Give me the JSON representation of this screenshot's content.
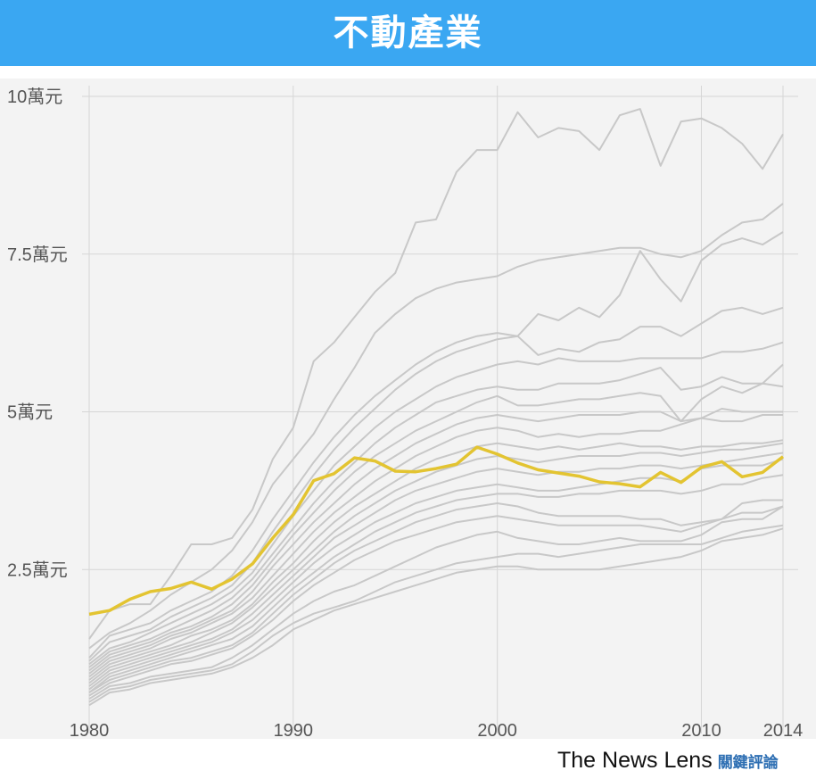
{
  "header": {
    "title": "不動產業"
  },
  "footer": {
    "brand_en": "The News Lens",
    "brand_zh": "關鍵評論"
  },
  "colors": {
    "banner": "#3aa7f2",
    "highlight": "#e3c431",
    "others": "#c8c8c8",
    "plot_bg": "#f3f3f3",
    "grid": "#d6d6d6"
  },
  "chart_data": {
    "type": "line",
    "title": "不動產業",
    "xlabel": "",
    "ylabel": "",
    "xlim": [
      1980,
      2014
    ],
    "ylim": [
      0,
      100000
    ],
    "grid": true,
    "x_ticks": [
      {
        "value": 1980,
        "label": "1980"
      },
      {
        "value": 1990,
        "label": "1990"
      },
      {
        "value": 2000,
        "label": "2000"
      },
      {
        "value": 2010,
        "label": "2010"
      },
      {
        "value": 2014,
        "label": "2014"
      }
    ],
    "y_ticks": [
      {
        "value": 25000,
        "label": "2.5萬元"
      },
      {
        "value": 50000,
        "label": "5萬元"
      },
      {
        "value": 75000,
        "label": "7.5萬元"
      },
      {
        "value": 100000,
        "label": "10萬元"
      }
    ],
    "x": [
      1980,
      1981,
      1982,
      1983,
      1984,
      1985,
      1986,
      1987,
      1988,
      1989,
      1990,
      1991,
      1992,
      1993,
      1994,
      1995,
      1996,
      1997,
      1998,
      1999,
      2000,
      2001,
      2002,
      2003,
      2004,
      2005,
      2006,
      2007,
      2008,
      2009,
      2010,
      2011,
      2012,
      2013,
      2014
    ],
    "highlight": {
      "values": [
        17900,
        18500,
        20300,
        21500,
        22000,
        23000,
        21900,
        23500,
        25900,
        30000,
        33700,
        39100,
        40200,
        42700,
        42200,
        40600,
        40500,
        41000,
        41700,
        44400,
        43300,
        41900,
        40800,
        40300,
        39800,
        38900,
        38600,
        38100,
        40400,
        38800,
        41200,
        42100,
        39700,
        40400,
        42900
      ]
    },
    "series": [
      {
        "values": [
          14000,
          18500,
          19500,
          19500,
          24000,
          29000,
          29000,
          30000,
          34500,
          42500,
          47500,
          58000,
          61000,
          65000,
          69000,
          72000,
          80000,
          80500,
          88000,
          91500,
          91500,
          97500,
          93500,
          95000,
          94500,
          91500,
          97000,
          98000,
          89000,
          96000,
          96500,
          95000,
          92500,
          88500,
          94000
        ]
      },
      {
        "values": [
          12500,
          15000,
          16500,
          18500,
          21000,
          23000,
          25000,
          28000,
          32500,
          38500,
          42500,
          46500,
          52000,
          57000,
          62500,
          65500,
          68000,
          69500,
          70500,
          71000,
          71500,
          73000,
          74000,
          74500,
          75000,
          75500,
          76000,
          76000,
          75000,
          74500,
          75500,
          78000,
          80000,
          80500,
          83000
        ]
      },
      {
        "values": [
          11000,
          14500,
          15500,
          16500,
          18500,
          20000,
          21500,
          24000,
          28000,
          33000,
          37500,
          42000,
          46000,
          49500,
          52500,
          55000,
          57500,
          59500,
          61000,
          62000,
          62500,
          62000,
          65500,
          64500,
          66500,
          65000,
          68500,
          75500,
          71000,
          67500,
          74000,
          76500,
          77500,
          76500,
          78500
        ]
      },
      {
        "values": [
          10500,
          13500,
          14500,
          15500,
          17500,
          19000,
          20500,
          22500,
          26000,
          31000,
          35500,
          40000,
          44000,
          47500,
          50500,
          53500,
          56000,
          58000,
          59500,
          60500,
          61500,
          62000,
          59000,
          60000,
          59500,
          61000,
          61500,
          63500,
          63500,
          62000,
          64000,
          66000,
          66500,
          65500,
          66500
        ]
      },
      {
        "values": [
          10000,
          12500,
          13500,
          15000,
          16500,
          18000,
          19500,
          21500,
          24500,
          29000,
          33500,
          37500,
          41500,
          44500,
          47500,
          50000,
          52000,
          54000,
          55500,
          56500,
          57500,
          58000,
          57500,
          58500,
          58000,
          58000,
          58000,
          58500,
          58500,
          58500,
          58500,
          59500,
          59500,
          60000,
          61000
        ]
      },
      {
        "values": [
          9500,
          12000,
          13000,
          14000,
          15500,
          17000,
          18500,
          20500,
          23500,
          27500,
          31500,
          35500,
          39000,
          42000,
          45000,
          47500,
          49500,
          51500,
          52500,
          53500,
          54000,
          53500,
          53500,
          54500,
          54500,
          54500,
          55000,
          56000,
          57000,
          53500,
          54000,
          55500,
          54500,
          54500,
          57500
        ]
      },
      {
        "values": [
          9000,
          11500,
          12500,
          13500,
          15000,
          16000,
          17500,
          19500,
          22500,
          26500,
          30500,
          34000,
          37500,
          40500,
          43000,
          45000,
          47000,
          48500,
          50000,
          51500,
          52500,
          51000,
          51000,
          51500,
          52000,
          52000,
          52500,
          53000,
          52500,
          48500,
          52000,
          54000,
          53000,
          54500,
          54000
        ]
      },
      {
        "values": [
          8500,
          11000,
          12000,
          13000,
          14500,
          15500,
          17000,
          18500,
          21500,
          25500,
          29000,
          32500,
          35500,
          38500,
          41000,
          43000,
          45000,
          46500,
          48000,
          49000,
          49500,
          49000,
          48500,
          49000,
          49500,
          49500,
          49500,
          50000,
          50000,
          48500,
          49000,
          50500,
          50000,
          50000,
          50000
        ]
      },
      {
        "values": [
          8000,
          10500,
          11500,
          12500,
          14000,
          15000,
          16500,
          18000,
          20500,
          24000,
          27500,
          31000,
          34000,
          36500,
          39000,
          41000,
          43000,
          44500,
          46000,
          47000,
          47500,
          47000,
          46000,
          46500,
          46000,
          46500,
          46500,
          47000,
          47000,
          48000,
          49000,
          48500,
          48500,
          49500,
          49500
        ]
      },
      {
        "values": [
          7500,
          10000,
          11000,
          12000,
          13000,
          14500,
          15500,
          17000,
          19500,
          23000,
          26000,
          29500,
          32500,
          35000,
          37000,
          39000,
          41000,
          42500,
          43500,
          44500,
          45000,
          44500,
          44000,
          44500,
          44000,
          44500,
          45000,
          44500,
          44500,
          44000,
          44500,
          44500,
          45000,
          45000,
          45500
        ]
      },
      {
        "values": [
          7000,
          9500,
          10500,
          11500,
          12500,
          13500,
          15000,
          16500,
          19000,
          22000,
          25000,
          28000,
          31000,
          33500,
          35500,
          37500,
          39000,
          40500,
          41500,
          42500,
          43000,
          42500,
          42000,
          42500,
          43000,
          43000,
          43000,
          43500,
          43500,
          43000,
          43500,
          44000,
          44000,
          44500,
          45000
        ]
      },
      {
        "values": [
          6500,
          9000,
          10000,
          11000,
          12000,
          13000,
          14000,
          15500,
          18000,
          21000,
          24000,
          27000,
          30000,
          32000,
          34000,
          36000,
          37500,
          38500,
          39500,
          40500,
          41000,
          40500,
          40000,
          40500,
          40500,
          41000,
          41000,
          41500,
          41500,
          41000,
          41500,
          42000,
          42500,
          43000,
          43500
        ]
      },
      {
        "values": [
          6000,
          8500,
          9500,
          10500,
          11500,
          12500,
          13500,
          15000,
          17000,
          20000,
          23000,
          26000,
          28500,
          30500,
          32500,
          34000,
          35500,
          36500,
          37500,
          38000,
          38500,
          38000,
          37500,
          37500,
          38000,
          38500,
          39000,
          39500,
          39500,
          39000,
          41000,
          41500,
          41500,
          41500,
          42500
        ]
      },
      {
        "values": [
          5500,
          8000,
          9000,
          10000,
          11000,
          12000,
          13000,
          14000,
          16000,
          19000,
          22000,
          24500,
          27000,
          29000,
          31000,
          32500,
          34000,
          35000,
          36000,
          36500,
          37000,
          37000,
          36500,
          36500,
          37000,
          37000,
          37500,
          37500,
          37500,
          37000,
          37500,
          38500,
          38500,
          39500,
          40000
        ]
      },
      {
        "values": [
          5500,
          7500,
          8500,
          9500,
          10500,
          11000,
          12000,
          13000,
          15000,
          18000,
          21000,
          23500,
          26000,
          28000,
          29500,
          31000,
          32500,
          33500,
          34500,
          35000,
          35500,
          35000,
          34000,
          33500,
          33500,
          33500,
          33500,
          33000,
          33000,
          32000,
          32500,
          33000,
          35500,
          36000,
          36000
        ]
      },
      {
        "values": [
          5000,
          7000,
          8000,
          9000,
          10000,
          10500,
          11500,
          12500,
          14500,
          17000,
          20000,
          22500,
          24500,
          26500,
          28000,
          29500,
          30500,
          31500,
          32500,
          33000,
          33500,
          33000,
          32500,
          32000,
          32000,
          32000,
          32000,
          32000,
          31500,
          31000,
          32000,
          33000,
          34000,
          34000,
          35000
        ]
      },
      {
        "values": [
          4500,
          6500,
          7000,
          8000,
          8500,
          9000,
          9500,
          11000,
          13000,
          15500,
          18000,
          20000,
          21500,
          22500,
          24000,
          25500,
          27000,
          28500,
          29500,
          30500,
          31000,
          30000,
          29500,
          29000,
          29000,
          29500,
          30000,
          29500,
          29500,
          29500,
          30500,
          32500,
          33000,
          33000,
          35000
        ]
      },
      {
        "values": [
          4000,
          6000,
          6500,
          7500,
          8000,
          8500,
          9000,
          10000,
          12000,
          14500,
          16500,
          18000,
          19000,
          20000,
          21500,
          23000,
          24000,
          25000,
          26000,
          26500,
          27000,
          27500,
          27500,
          27000,
          27500,
          28000,
          28500,
          29000,
          29000,
          29000,
          29000,
          30000,
          31000,
          31500,
          32000
        ]
      },
      {
        "values": [
          3500,
          5500,
          6000,
          7000,
          7500,
          8000,
          8500,
          9500,
          11000,
          13000,
          15500,
          17000,
          18500,
          19500,
          20500,
          21500,
          22500,
          23500,
          24500,
          25000,
          25500,
          25500,
          25000,
          25000,
          25000,
          25000,
          25500,
          26000,
          26500,
          27000,
          28000,
          29500,
          30000,
          30500,
          31500
        ]
      }
    ]
  }
}
